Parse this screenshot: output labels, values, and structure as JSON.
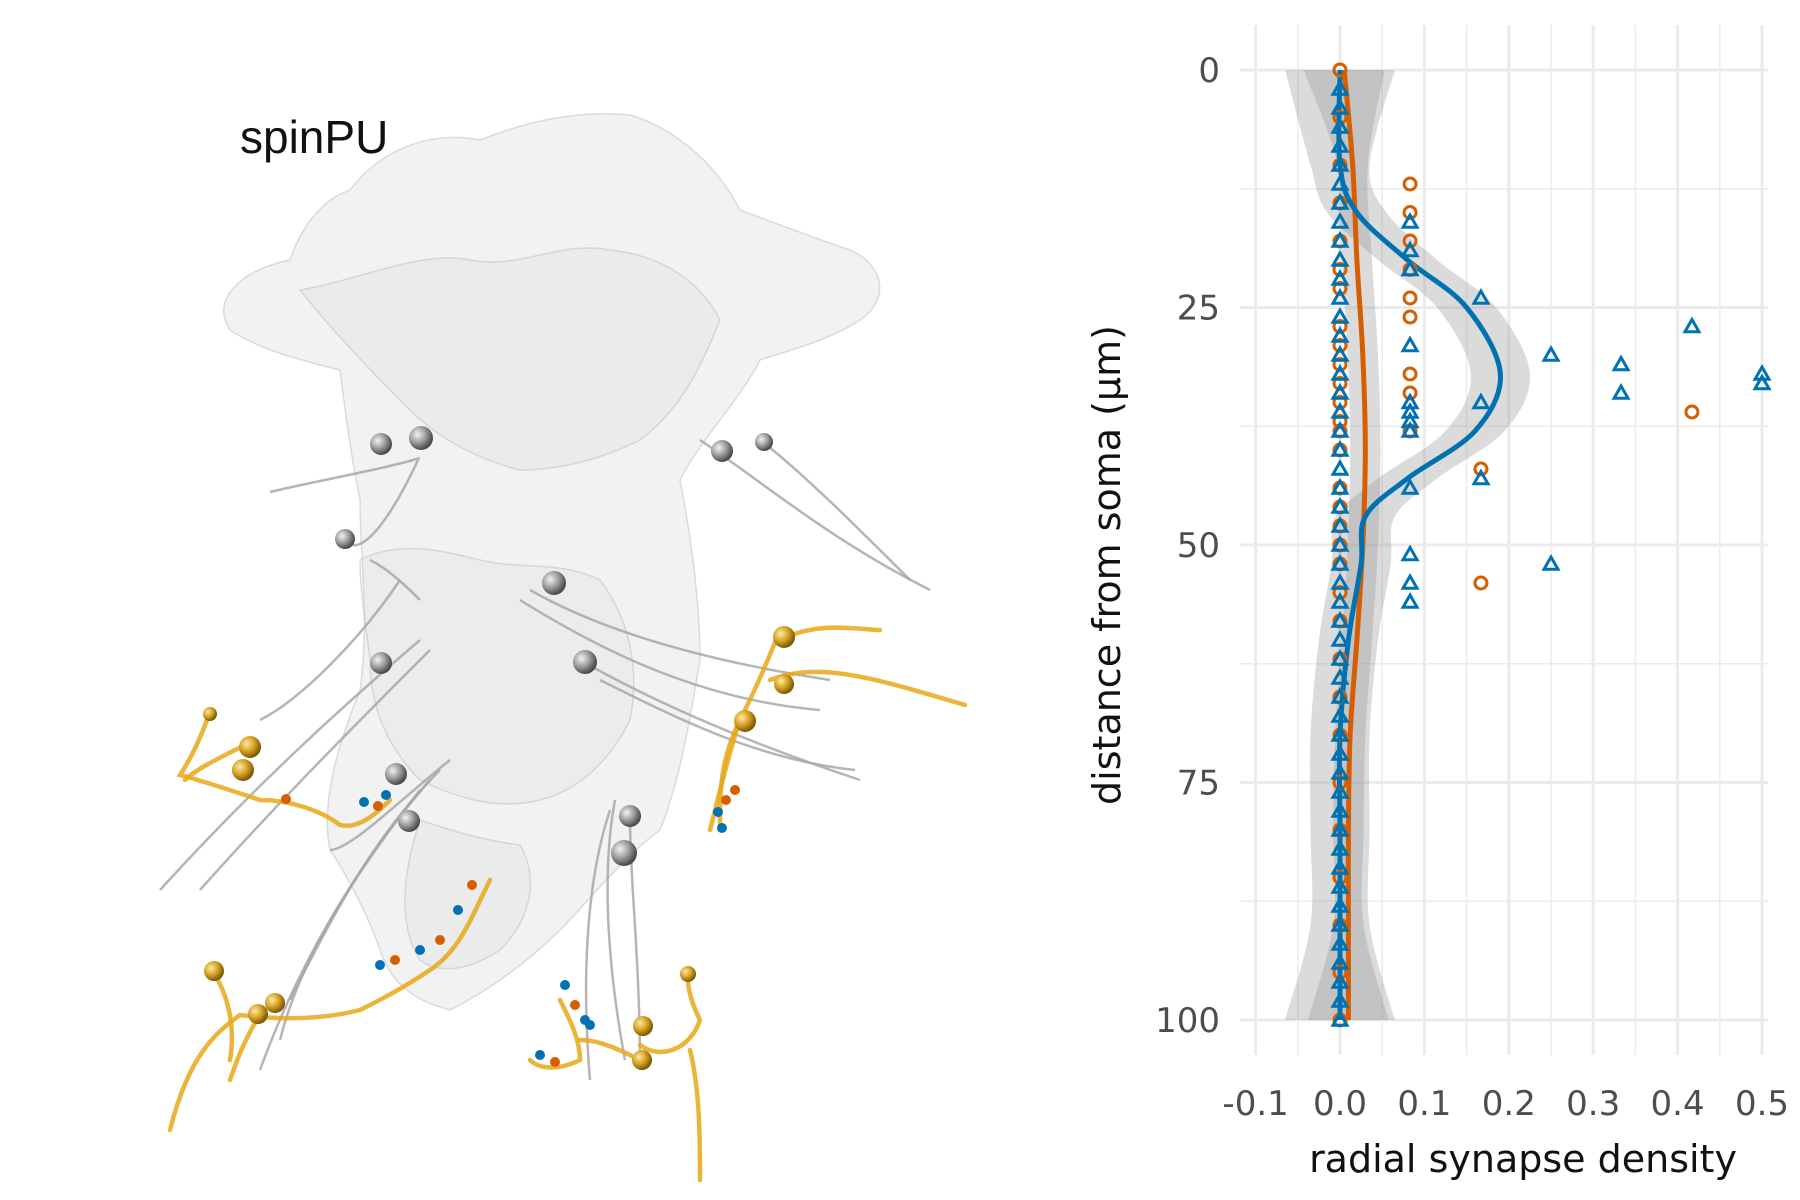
{
  "specimen": {
    "label": "spinPU"
  },
  "chart_data": {
    "type": "scatter",
    "title": "",
    "xlabel": "radial synapse density",
    "ylabel": "distance from soma (μm)",
    "xlim": [
      -0.1,
      0.52
    ],
    "ylim": [
      0,
      100
    ],
    "y_reversed": true,
    "grid": true,
    "x_ticks": [
      "-0.1",
      "0.0",
      "0.1",
      "0.2",
      "0.3",
      "0.4",
      "0.5"
    ],
    "y_ticks": [
      "0",
      "25",
      "50",
      "75",
      "100"
    ],
    "series": [
      {
        "marker": "circle",
        "color": "#D55E00",
        "points": [
          [
            0.0,
            0
          ],
          [
            0.0,
            5
          ],
          [
            0.0,
            10
          ],
          [
            0.0,
            14
          ],
          [
            0.0,
            18
          ],
          [
            0.0,
            21
          ],
          [
            0.0,
            23
          ],
          [
            0.0,
            27
          ],
          [
            0.0,
            29
          ],
          [
            0.0,
            31
          ],
          [
            0.0,
            33
          ],
          [
            0.0,
            35
          ],
          [
            0.0,
            37
          ],
          [
            0.0,
            38
          ],
          [
            0.0,
            40
          ],
          [
            0.0,
            44
          ],
          [
            0.0,
            46
          ],
          [
            0.0,
            48
          ],
          [
            0.0,
            50
          ],
          [
            0.0,
            52
          ],
          [
            0.0,
            55
          ],
          [
            0.0,
            58
          ],
          [
            0.0,
            62
          ],
          [
            0.0,
            66
          ],
          [
            0.0,
            70
          ],
          [
            0.0,
            75
          ],
          [
            0.0,
            80
          ],
          [
            0.0,
            85
          ],
          [
            0.0,
            90
          ],
          [
            0.0,
            95
          ],
          [
            0.0,
            100
          ],
          [
            0.083,
            12
          ],
          [
            0.083,
            15
          ],
          [
            0.083,
            18
          ],
          [
            0.083,
            21
          ],
          [
            0.083,
            24
          ],
          [
            0.083,
            26
          ],
          [
            0.083,
            32
          ],
          [
            0.083,
            34
          ],
          [
            0.083,
            38
          ],
          [
            0.167,
            42
          ],
          [
            0.167,
            54
          ],
          [
            0.417,
            36
          ]
        ],
        "trend": [
          [
            0.005,
            0
          ],
          [
            0.015,
            10
          ],
          [
            0.02,
            20
          ],
          [
            0.027,
            30
          ],
          [
            0.03,
            40
          ],
          [
            0.027,
            50
          ],
          [
            0.02,
            60
          ],
          [
            0.012,
            70
          ],
          [
            0.01,
            80
          ],
          [
            0.01,
            90
          ],
          [
            0.01,
            100
          ]
        ],
        "trend_color": "#D55E00"
      },
      {
        "marker": "triangle",
        "color": "#0072B2",
        "points": [
          [
            0.0,
            2
          ],
          [
            0.0,
            4
          ],
          [
            0.0,
            6
          ],
          [
            0.0,
            8
          ],
          [
            0.0,
            10
          ],
          [
            0.0,
            12
          ],
          [
            0.0,
            14
          ],
          [
            0.0,
            16
          ],
          [
            0.0,
            18
          ],
          [
            0.0,
            20
          ],
          [
            0.0,
            22
          ],
          [
            0.0,
            24
          ],
          [
            0.0,
            26
          ],
          [
            0.0,
            28
          ],
          [
            0.0,
            30
          ],
          [
            0.0,
            32
          ],
          [
            0.0,
            34
          ],
          [
            0.0,
            36
          ],
          [
            0.0,
            38
          ],
          [
            0.0,
            40
          ],
          [
            0.0,
            42
          ],
          [
            0.0,
            44
          ],
          [
            0.0,
            46
          ],
          [
            0.0,
            48
          ],
          [
            0.0,
            50
          ],
          [
            0.0,
            52
          ],
          [
            0.0,
            54
          ],
          [
            0.0,
            56
          ],
          [
            0.0,
            58
          ],
          [
            0.0,
            60
          ],
          [
            0.0,
            62
          ],
          [
            0.0,
            64
          ],
          [
            0.0,
            66
          ],
          [
            0.0,
            68
          ],
          [
            0.0,
            70
          ],
          [
            0.0,
            72
          ],
          [
            0.0,
            74
          ],
          [
            0.0,
            76
          ],
          [
            0.0,
            78
          ],
          [
            0.0,
            80
          ],
          [
            0.0,
            82
          ],
          [
            0.0,
            84
          ],
          [
            0.0,
            86
          ],
          [
            0.0,
            88
          ],
          [
            0.0,
            90
          ],
          [
            0.0,
            92
          ],
          [
            0.0,
            94
          ],
          [
            0.0,
            96
          ],
          [
            0.0,
            98
          ],
          [
            0.0,
            100
          ],
          [
            0.083,
            16
          ],
          [
            0.083,
            19
          ],
          [
            0.083,
            21
          ],
          [
            0.083,
            29
          ],
          [
            0.083,
            35
          ],
          [
            0.083,
            36
          ],
          [
            0.083,
            37
          ],
          [
            0.083,
            38
          ],
          [
            0.083,
            44
          ],
          [
            0.083,
            51
          ],
          [
            0.083,
            54
          ],
          [
            0.083,
            56
          ],
          [
            0.167,
            24
          ],
          [
            0.167,
            35
          ],
          [
            0.167,
            43
          ],
          [
            0.25,
            30
          ],
          [
            0.25,
            52
          ],
          [
            0.333,
            31
          ],
          [
            0.333,
            34
          ],
          [
            0.417,
            27
          ],
          [
            0.5,
            32
          ],
          [
            0.5,
            33
          ]
        ],
        "trend": [
          [
            0.0,
            0
          ],
          [
            0.0,
            10
          ],
          [
            0.02,
            15
          ],
          [
            0.08,
            20
          ],
          [
            0.15,
            25
          ],
          [
            0.19,
            32
          ],
          [
            0.16,
            38
          ],
          [
            0.08,
            43
          ],
          [
            0.03,
            47
          ],
          [
            0.025,
            52
          ],
          [
            0.01,
            60
          ],
          [
            0.0,
            70
          ],
          [
            0.0,
            80
          ],
          [
            0.0,
            90
          ],
          [
            0.0,
            100
          ]
        ],
        "trend_color": "#0072B2"
      }
    ]
  }
}
